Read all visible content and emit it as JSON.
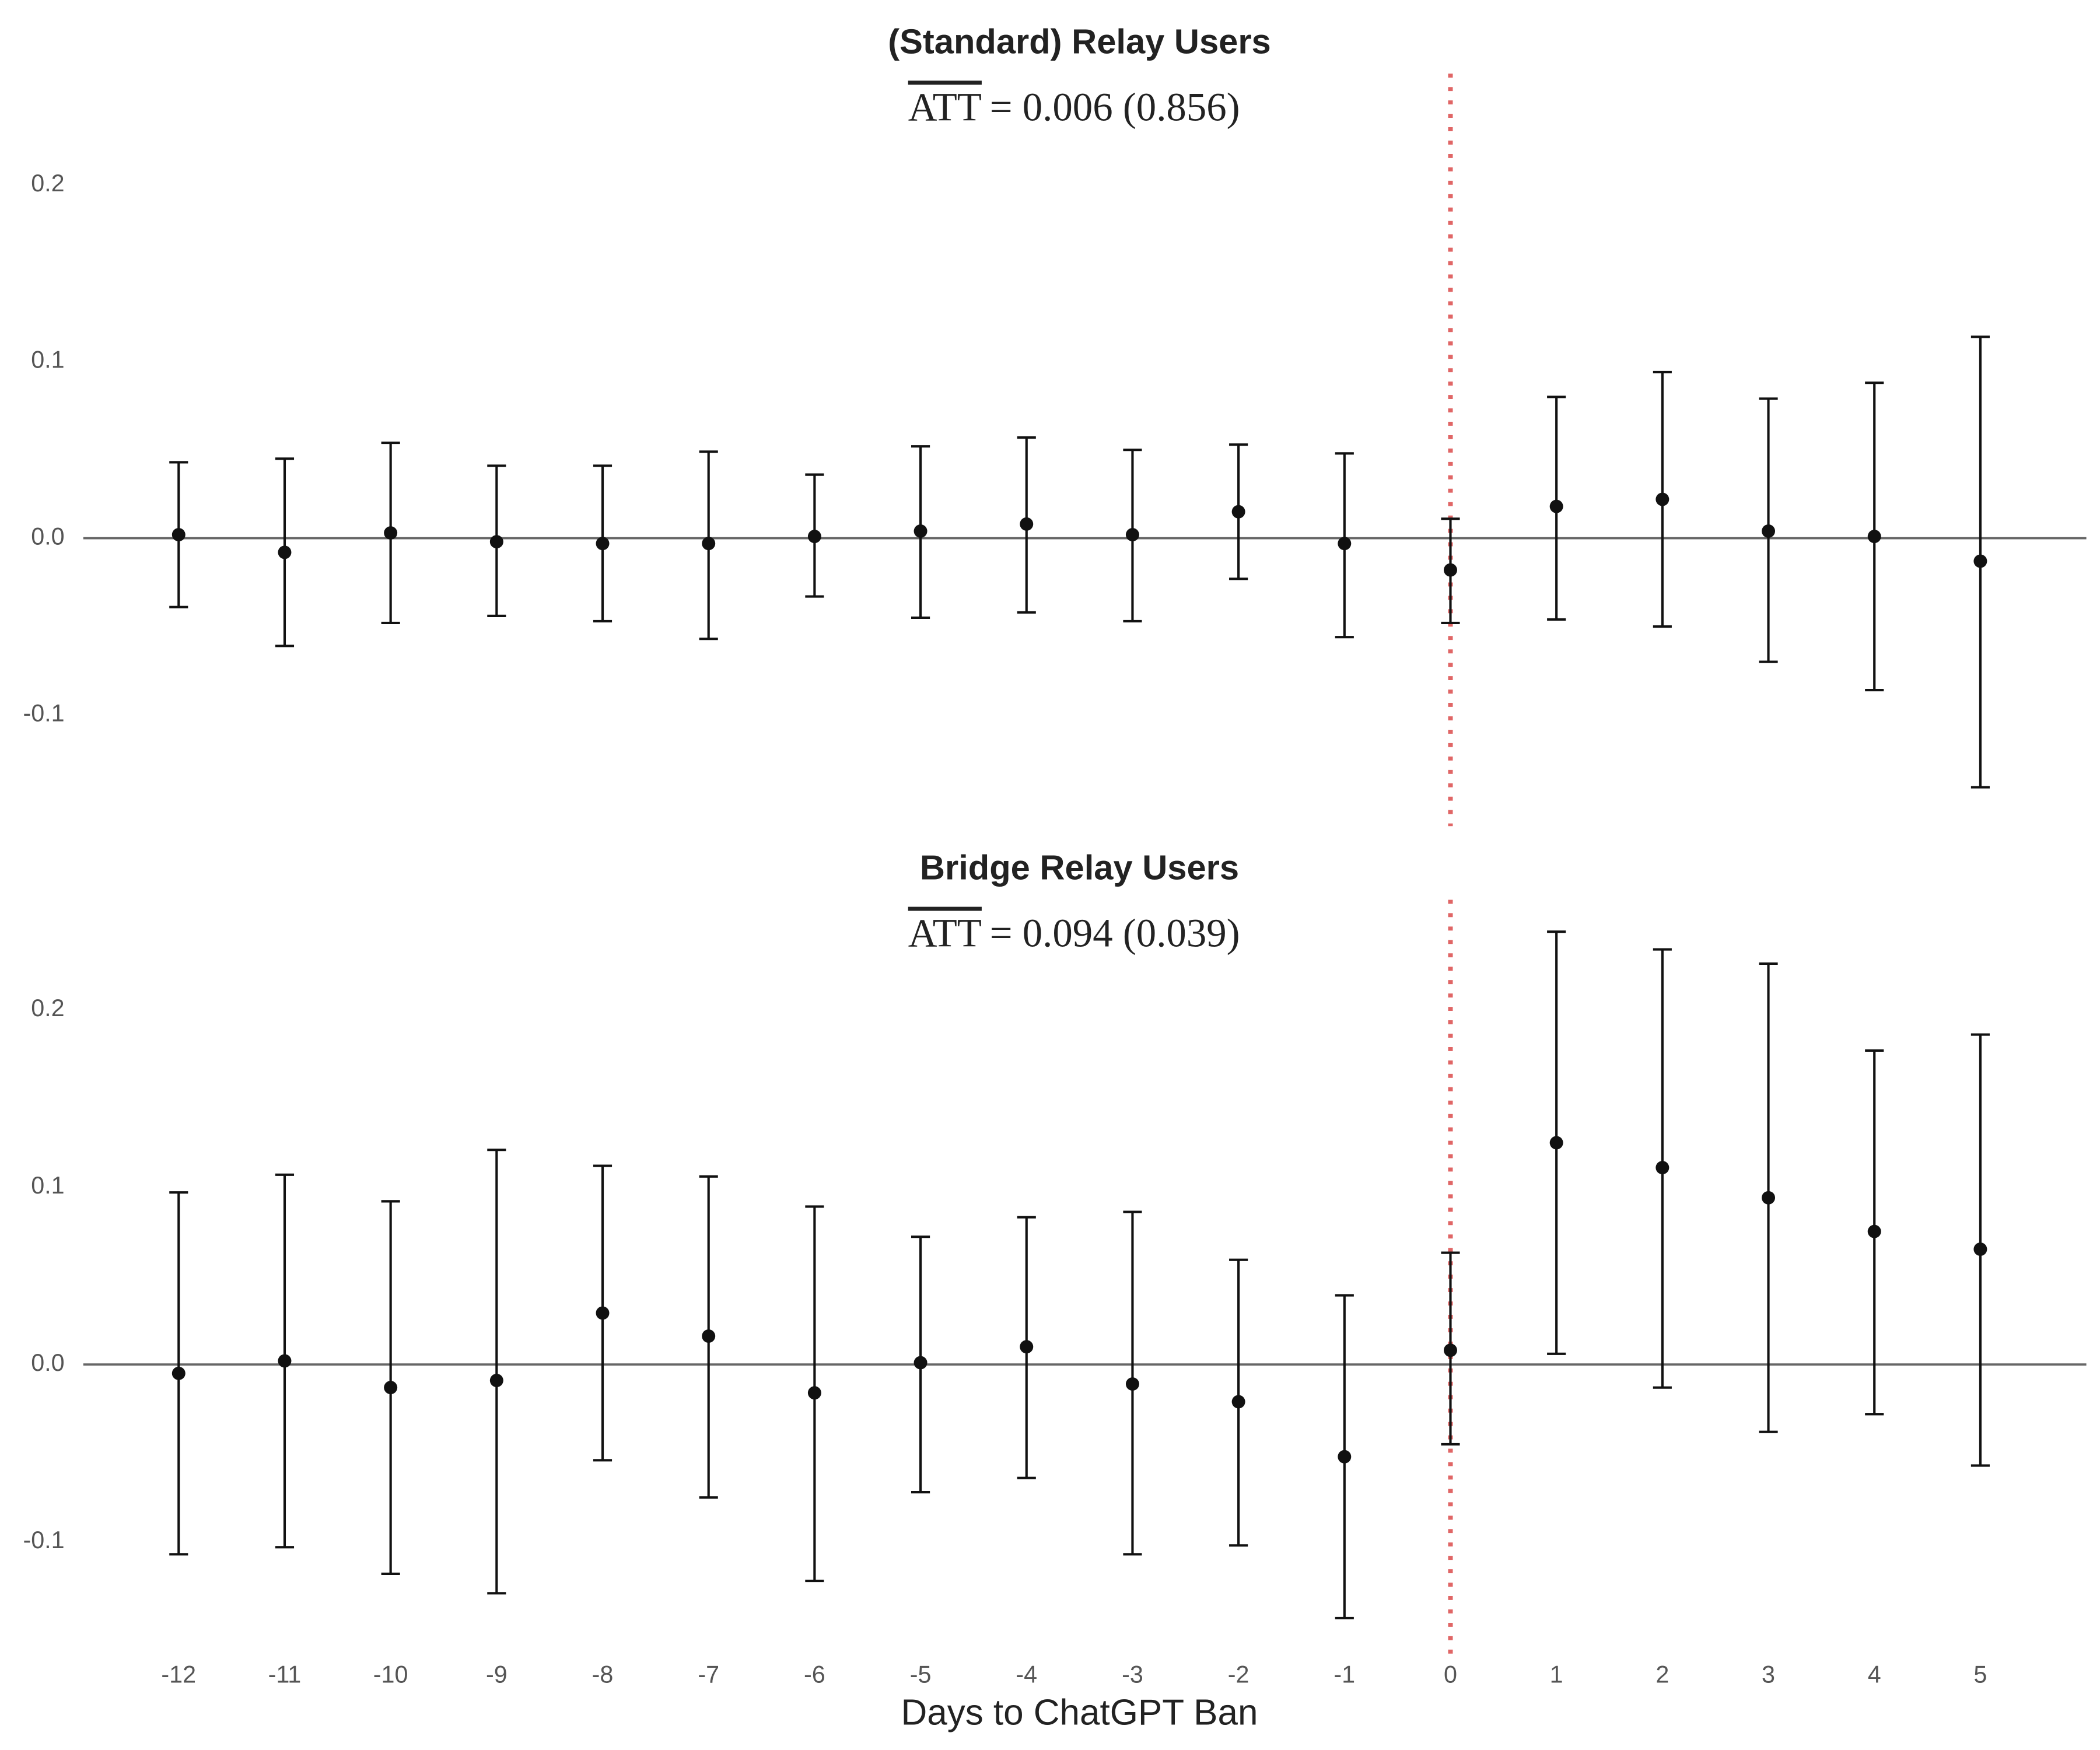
{
  "chart_data": [
    {
      "type": "errorbar",
      "title": "(Standard) Relay Users",
      "subtitle": {
        "overline": "ATT",
        "text": "= 0.006 (0.856)"
      },
      "x": [
        -12,
        -11,
        -10,
        -9,
        -8,
        -7,
        -6,
        -5,
        -4,
        -3,
        -2,
        -1,
        0,
        1,
        2,
        3,
        4,
        5
      ],
      "values": [
        0.002,
        -0.008,
        0.003,
        -0.002,
        -0.003,
        -0.003,
        0.001,
        0.004,
        0.008,
        0.002,
        0.015,
        -0.003,
        -0.018,
        0.018,
        0.022,
        0.004,
        0.001,
        -0.013
      ],
      "ci_high": [
        0.043,
        0.045,
        0.054,
        0.041,
        0.041,
        0.049,
        0.036,
        0.052,
        0.057,
        0.05,
        0.053,
        0.048,
        0.011,
        0.08,
        0.094,
        0.079,
        0.088,
        0.114
      ],
      "ci_low": [
        -0.039,
        -0.061,
        -0.048,
        -0.044,
        -0.047,
        -0.057,
        -0.033,
        -0.045,
        -0.042,
        -0.047,
        -0.023,
        -0.056,
        -0.048,
        -0.046,
        -0.05,
        -0.07,
        -0.086,
        -0.141
      ],
      "color": "#111111",
      "xlim": [
        -12.9,
        6
      ],
      "ylim": [
        -0.163,
        0.263
      ],
      "yticks": [
        -0.1,
        {
          "value": 0,
          "label": "0.0"
        },
        0.1,
        0.2
      ],
      "zero_line": true,
      "vline": 0,
      "vline_color": "#e06666"
    },
    {
      "type": "errorbar",
      "title": "Bridge Relay Users",
      "subtitle": {
        "overline": "ATT",
        "text": "= 0.094 (0.039)"
      },
      "x_label": "Days to ChatGPT Ban",
      "x": [
        -12,
        -11,
        -10,
        -9,
        -8,
        -7,
        -6,
        -5,
        -4,
        -3,
        -2,
        -1,
        0,
        1,
        2,
        3,
        4,
        5
      ],
      "values": [
        -0.005,
        0.002,
        -0.013,
        -0.009,
        0.029,
        0.016,
        -0.016,
        0.001,
        0.01,
        -0.011,
        -0.021,
        -0.052,
        0.008,
        0.125,
        0.111,
        0.094,
        0.075,
        0.065
      ],
      "ci_high": [
        0.097,
        0.107,
        0.092,
        0.121,
        0.112,
        0.106,
        0.089,
        0.072,
        0.083,
        0.086,
        0.059,
        0.039,
        0.063,
        0.244,
        0.234,
        0.226,
        0.177,
        0.186
      ],
      "ci_low": [
        -0.107,
        -0.103,
        -0.118,
        -0.129,
        -0.054,
        -0.075,
        -0.122,
        -0.072,
        -0.064,
        -0.107,
        -0.102,
        -0.143,
        -0.045,
        0.006,
        -0.013,
        -0.038,
        -0.028,
        -0.057
      ],
      "color": "#111111",
      "xlim": [
        -12.9,
        6
      ],
      "ylim": [
        -0.163,
        0.262
      ],
      "xticks": [
        -12,
        -11,
        -10,
        -9,
        -8,
        -7,
        -6,
        -5,
        -4,
        -3,
        -2,
        -1,
        0,
        1,
        2,
        3,
        4,
        5
      ],
      "yticks": [
        -0.1,
        {
          "value": 0,
          "label": "0.0"
        },
        0.1,
        0.2
      ],
      "zero_line": true,
      "vline": 0,
      "vline_color": "#e06666"
    }
  ]
}
